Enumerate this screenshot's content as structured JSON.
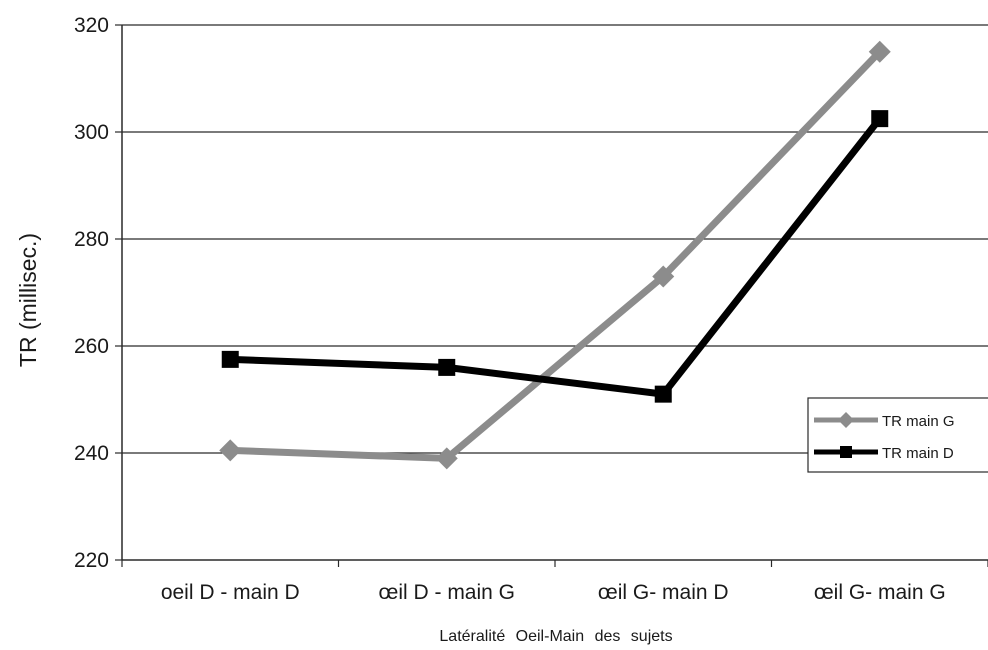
{
  "chart_data": {
    "type": "line",
    "categories": [
      "oeil D - main D",
      "œil D - main G",
      "œil G- main D",
      "œil G- main G"
    ],
    "series": [
      {
        "name": "TR main G",
        "values": [
          240.5,
          239,
          273,
          315
        ],
        "color": "#8c8c8c",
        "marker": "diamond"
      },
      {
        "name": "TR main D",
        "values": [
          257.5,
          256,
          251,
          302.5
        ],
        "color": "#000000",
        "marker": "square"
      }
    ],
    "title": "",
    "xlabel": "Latéralité Oeil-Main des sujets",
    "ylabel": "TR (millisec.)",
    "ylim": [
      220,
      320
    ],
    "yticks": [
      "220",
      "240",
      "260",
      "280",
      "300",
      "320"
    ],
    "grid": true,
    "legend_position": "right"
  }
}
